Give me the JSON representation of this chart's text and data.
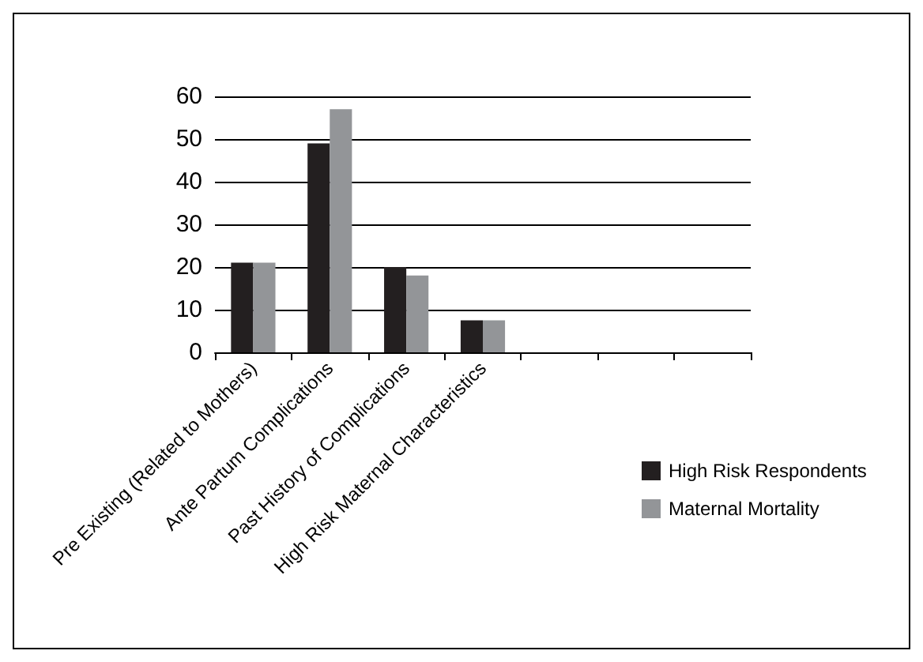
{
  "chart_data": {
    "type": "bar",
    "categories": [
      "Pre Existing (Related to Mothers)",
      "Ante Partum Complications",
      "Past History of Complications",
      "High Risk Maternal Characteristics",
      null,
      null,
      null
    ],
    "series": [
      {
        "name": "High Risk Respondents",
        "color": "#231f20",
        "values": [
          21,
          49,
          20,
          7.5,
          null,
          null,
          null
        ]
      },
      {
        "name": "Maternal Mortality",
        "color": "#939598",
        "values": [
          21,
          57,
          18,
          7.5,
          null,
          null,
          null
        ]
      }
    ],
    "ylim": [
      0,
      60
    ],
    "yticks": [
      0,
      10,
      20,
      30,
      40,
      50,
      60
    ],
    "grid": "y",
    "legend": "bottom right"
  }
}
